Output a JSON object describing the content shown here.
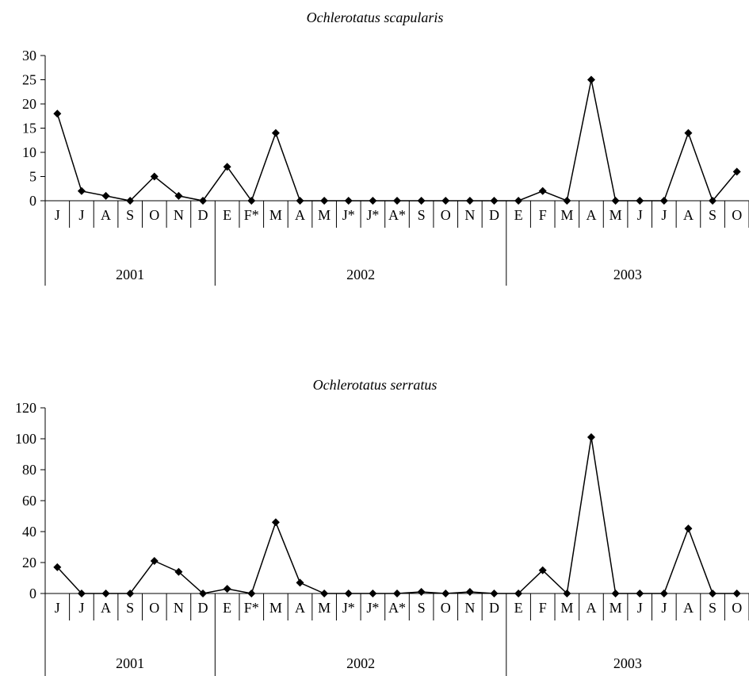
{
  "chart_data": [
    {
      "type": "line",
      "title": "Ochlerotatus scapularis",
      "ylim": [
        0,
        30
      ],
      "yticks": [
        "0",
        "5",
        "10",
        "15",
        "20",
        "25",
        "30"
      ],
      "categories": [
        "J",
        "J",
        "A",
        "S",
        "O",
        "N",
        "D",
        "E",
        "F*",
        "M",
        "A",
        "M",
        "J*",
        "J*",
        "A*",
        "S",
        "O",
        "N",
        "D",
        "E",
        "F",
        "M",
        "A",
        "M",
        "J",
        "J",
        "A",
        "S",
        "O"
      ],
      "values": [
        18,
        2,
        1,
        0,
        5,
        1,
        0,
        7,
        0,
        14,
        0,
        0,
        0,
        0,
        0,
        0,
        0,
        0,
        0,
        0,
        2,
        0,
        25,
        0,
        0,
        0,
        14,
        0,
        6
      ],
      "years": [
        {
          "label": "2001",
          "start": 0,
          "end": 6
        },
        {
          "label": "2002",
          "start": 7,
          "end": 18
        },
        {
          "label": "2003",
          "start": 19,
          "end": 28
        }
      ],
      "grid": false,
      "marker": "diamond",
      "color": "#000000"
    },
    {
      "type": "line",
      "title": "Ochlerotatus serratus",
      "ylim": [
        0,
        120
      ],
      "yticks": [
        "0",
        "20",
        "40",
        "60",
        "80",
        "100",
        "120"
      ],
      "categories": [
        "J",
        "J",
        "A",
        "S",
        "O",
        "N",
        "D",
        "E",
        "F*",
        "M",
        "A",
        "M",
        "J*",
        "J*",
        "A*",
        "S",
        "O",
        "N",
        "D",
        "E",
        "F",
        "M",
        "A",
        "M",
        "J",
        "J",
        "A",
        "S",
        "O"
      ],
      "values": [
        17,
        0,
        0,
        0,
        21,
        14,
        0,
        3,
        0,
        46,
        7,
        0,
        0,
        0,
        0,
        1,
        0,
        1,
        0,
        0,
        15,
        0,
        101,
        0,
        0,
        0,
        42,
        0,
        0
      ],
      "years": [
        {
          "label": "2001",
          "start": 0,
          "end": 6
        },
        {
          "label": "2002",
          "start": 7,
          "end": 18
        },
        {
          "label": "2003",
          "start": 19,
          "end": 28
        }
      ],
      "grid": false,
      "marker": "diamond",
      "color": "#000000"
    }
  ]
}
